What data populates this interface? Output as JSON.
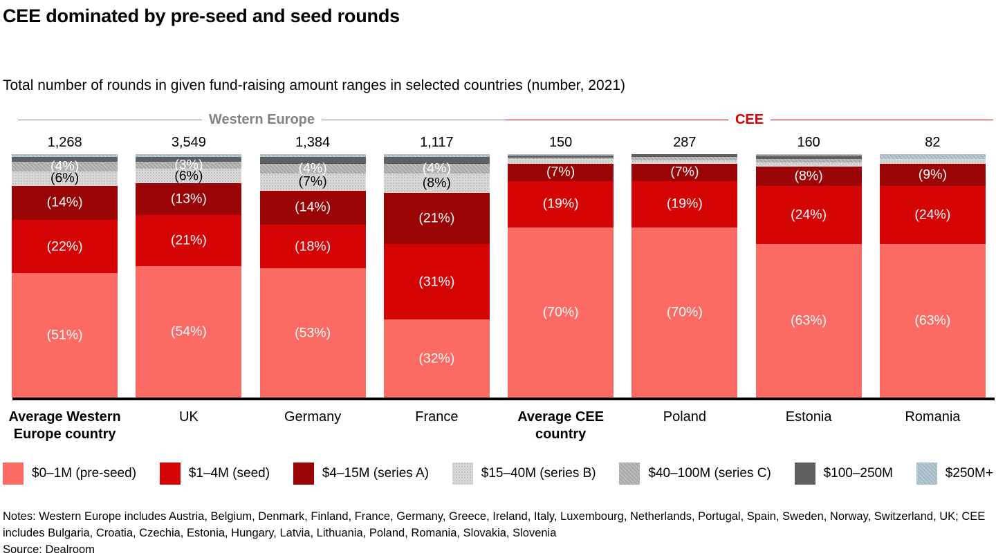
{
  "title": "CEE dominated by pre-seed and seed rounds",
  "subtitle": "Total number of rounds in given fund-raising amount ranges in selected countries (number, 2021)",
  "groups": {
    "western_europe": {
      "label": "Western Europe",
      "color": "#808285"
    },
    "cee": {
      "label": "CEE",
      "color": "#d60000"
    }
  },
  "chart_data": {
    "type": "bar",
    "variant": "100%-stacked-column",
    "title": "Total number of rounds in given fund-raising amount ranges in selected countries (number, 2021)",
    "categories": [
      "Average Western Europe country",
      "UK",
      "Germany",
      "France",
      "Average CEE country",
      "Poland",
      "Estonia",
      "Romania"
    ],
    "totals": [
      "1,268",
      "3,549",
      "1,384",
      "1,117",
      "150",
      "287",
      "160",
      "82"
    ],
    "segment_order_top_to_bottom": [
      "$250M+",
      "$100–250M",
      "$40–100M (series C)",
      "$15–40M (series B)",
      "$4–15M (series A)",
      "$1–4M (seed)",
      "$0–1M (pre-seed)"
    ],
    "bars": [
      {
        "category": "Average Western Europe country",
        "bold": true,
        "group": "Western Europe",
        "total": "1,268",
        "segments": [
          {
            "key": "m250plus",
            "pct": 1,
            "label": ""
          },
          {
            "key": "m100-250",
            "pct": 2,
            "label": ""
          },
          {
            "key": "series-c",
            "pct": 4,
            "label": "(4%)",
            "label_color": "#ffffff"
          },
          {
            "key": "series-b",
            "pct": 6,
            "label": "(6%)",
            "label_color": "#000000"
          },
          {
            "key": "series-a",
            "pct": 14,
            "label": "(14%)",
            "label_color": "#ffffff"
          },
          {
            "key": "seed",
            "pct": 22,
            "label": "(22%)",
            "label_color": "#ffffff"
          },
          {
            "key": "pre-seed",
            "pct": 51,
            "label": "(51%)",
            "label_color": "#ffffff"
          }
        ]
      },
      {
        "category": "UK",
        "bold": false,
        "group": "Western Europe",
        "total": "3,549",
        "segments": [
          {
            "key": "m250plus",
            "pct": 1,
            "label": ""
          },
          {
            "key": "m100-250",
            "pct": 2,
            "label": ""
          },
          {
            "key": "series-c",
            "pct": 3,
            "label": "(3%)",
            "label_color": "#ffffff"
          },
          {
            "key": "series-b",
            "pct": 6,
            "label": "(6%)",
            "label_color": "#000000"
          },
          {
            "key": "series-a",
            "pct": 13,
            "label": "(13%)",
            "label_color": "#ffffff"
          },
          {
            "key": "seed",
            "pct": 21,
            "label": "(21%)",
            "label_color": "#ffffff"
          },
          {
            "key": "pre-seed",
            "pct": 54,
            "label": "(54%)",
            "label_color": "#ffffff"
          }
        ]
      },
      {
        "category": "Germany",
        "bold": false,
        "group": "Western Europe",
        "total": "1,384",
        "segments": [
          {
            "key": "m250plus",
            "pct": 1,
            "label": ""
          },
          {
            "key": "m100-250",
            "pct": 3,
            "label": ""
          },
          {
            "key": "series-c",
            "pct": 4,
            "label": "(4%)",
            "label_color": "#ffffff"
          },
          {
            "key": "series-b",
            "pct": 7,
            "label": "(7%)",
            "label_color": "#000000"
          },
          {
            "key": "series-a",
            "pct": 14,
            "label": "(14%)",
            "label_color": "#ffffff"
          },
          {
            "key": "seed",
            "pct": 18,
            "label": "(18%)",
            "label_color": "#ffffff"
          },
          {
            "key": "pre-seed",
            "pct": 53,
            "label": "(53%)",
            "label_color": "#ffffff"
          }
        ]
      },
      {
        "category": "France",
        "bold": false,
        "group": "Western Europe",
        "total": "1,117",
        "segments": [
          {
            "key": "m250plus",
            "pct": 1,
            "label": ""
          },
          {
            "key": "m100-250",
            "pct": 3,
            "label": ""
          },
          {
            "key": "series-c",
            "pct": 4,
            "label": "(4%)",
            "label_color": "#ffffff"
          },
          {
            "key": "series-b",
            "pct": 8,
            "label": "(8%)",
            "label_color": "#000000"
          },
          {
            "key": "series-a",
            "pct": 21,
            "label": "(21%)",
            "label_color": "#ffffff"
          },
          {
            "key": "seed",
            "pct": 31,
            "label": "(31%)",
            "label_color": "#ffffff"
          },
          {
            "key": "pre-seed",
            "pct": 32,
            "label": "(32%)",
            "label_color": "#ffffff"
          }
        ]
      },
      {
        "category": "Average CEE country",
        "bold": true,
        "group": "CEE",
        "total": "150",
        "segments": [
          {
            "key": "m250plus",
            "pct": 0.5,
            "label": ""
          },
          {
            "key": "m100-250",
            "pct": 1,
            "label": ""
          },
          {
            "key": "series-c",
            "pct": 0.5,
            "label": ""
          },
          {
            "key": "series-b",
            "pct": 2,
            "label": ""
          },
          {
            "key": "series-a",
            "pct": 7,
            "label": "(7%)",
            "label_color": "#ffffff"
          },
          {
            "key": "seed",
            "pct": 19,
            "label": "(19%)",
            "label_color": "#ffffff"
          },
          {
            "key": "pre-seed",
            "pct": 70,
            "label": "(70%)",
            "label_color": "#ffffff"
          }
        ]
      },
      {
        "category": "Poland",
        "bold": false,
        "group": "CEE",
        "total": "287",
        "segments": [
          {
            "key": "m250plus",
            "pct": 0,
            "label": ""
          },
          {
            "key": "m100-250",
            "pct": 1,
            "label": ""
          },
          {
            "key": "series-c",
            "pct": 1.5,
            "label": ""
          },
          {
            "key": "series-b",
            "pct": 1.5,
            "label": ""
          },
          {
            "key": "series-a",
            "pct": 7,
            "label": "(7%)",
            "label_color": "#ffffff"
          },
          {
            "key": "seed",
            "pct": 19,
            "label": "(19%)",
            "label_color": "#ffffff"
          },
          {
            "key": "pre-seed",
            "pct": 70,
            "label": "(70%)",
            "label_color": "#ffffff"
          }
        ]
      },
      {
        "category": "Estonia",
        "bold": false,
        "group": "CEE",
        "total": "160",
        "segments": [
          {
            "key": "m250plus",
            "pct": 0.5,
            "label": ""
          },
          {
            "key": "m100-250",
            "pct": 1.5,
            "label": ""
          },
          {
            "key": "series-c",
            "pct": 1.5,
            "label": ""
          },
          {
            "key": "series-b",
            "pct": 1.5,
            "label": ""
          },
          {
            "key": "series-a",
            "pct": 8,
            "label": "(8%)",
            "label_color": "#ffffff"
          },
          {
            "key": "seed",
            "pct": 24,
            "label": "(24%)",
            "label_color": "#ffffff"
          },
          {
            "key": "pre-seed",
            "pct": 63,
            "label": "(63%)",
            "label_color": "#ffffff"
          }
        ]
      },
      {
        "category": "Romania",
        "bold": false,
        "group": "CEE",
        "total": "82",
        "segments": [
          {
            "key": "m250plus",
            "pct": 2,
            "label": ""
          },
          {
            "key": "m100-250",
            "pct": 0,
            "label": ""
          },
          {
            "key": "series-c",
            "pct": 0,
            "label": ""
          },
          {
            "key": "series-b",
            "pct": 2,
            "label": ""
          },
          {
            "key": "series-a",
            "pct": 9,
            "label": "(9%)",
            "label_color": "#ffffff"
          },
          {
            "key": "seed",
            "pct": 24,
            "label": "(24%)",
            "label_color": "#ffffff"
          },
          {
            "key": "pre-seed",
            "pct": 63,
            "label": "(63%)",
            "label_color": "#ffffff"
          }
        ]
      }
    ]
  },
  "legend": [
    {
      "key": "pre-seed",
      "label": "$0–1M (pre-seed)",
      "color": "#fc6b63",
      "pattern": "solid"
    },
    {
      "key": "seed",
      "label": "$1–4M (seed)",
      "color": "#d60505",
      "pattern": "solid"
    },
    {
      "key": "series-a",
      "label": "$4–15M (series A)",
      "color": "#9b0404",
      "pattern": "solid"
    },
    {
      "key": "series-b",
      "label": "$15–40M (series B)",
      "color": "#d8d8d8",
      "pattern": "dots"
    },
    {
      "key": "series-c",
      "label": "$40–100M (series C)",
      "color": "#a8a8a8",
      "pattern": "hatch"
    },
    {
      "key": "m100-250",
      "label": "$100–250M",
      "color": "#5f6062",
      "pattern": "solid"
    },
    {
      "key": "m250plus",
      "label": "$250M+",
      "color": "#a4bac6",
      "pattern": "hatch"
    }
  ],
  "notes": "Notes: Western Europe includes Austria, Belgium, Denmark, Finland, France, Germany, Greece, Ireland, Italy, Luxembourg, Netherlands, Portugal, Spain, Sweden, Norway, Switzerland, UK; CEE includes Bulgaria, Croatia, Czechia, Estonia, Hungary, Latvia, Lithuania, Poland, Romania, Slovakia, Slovenia",
  "source": "Source: Dealroom"
}
